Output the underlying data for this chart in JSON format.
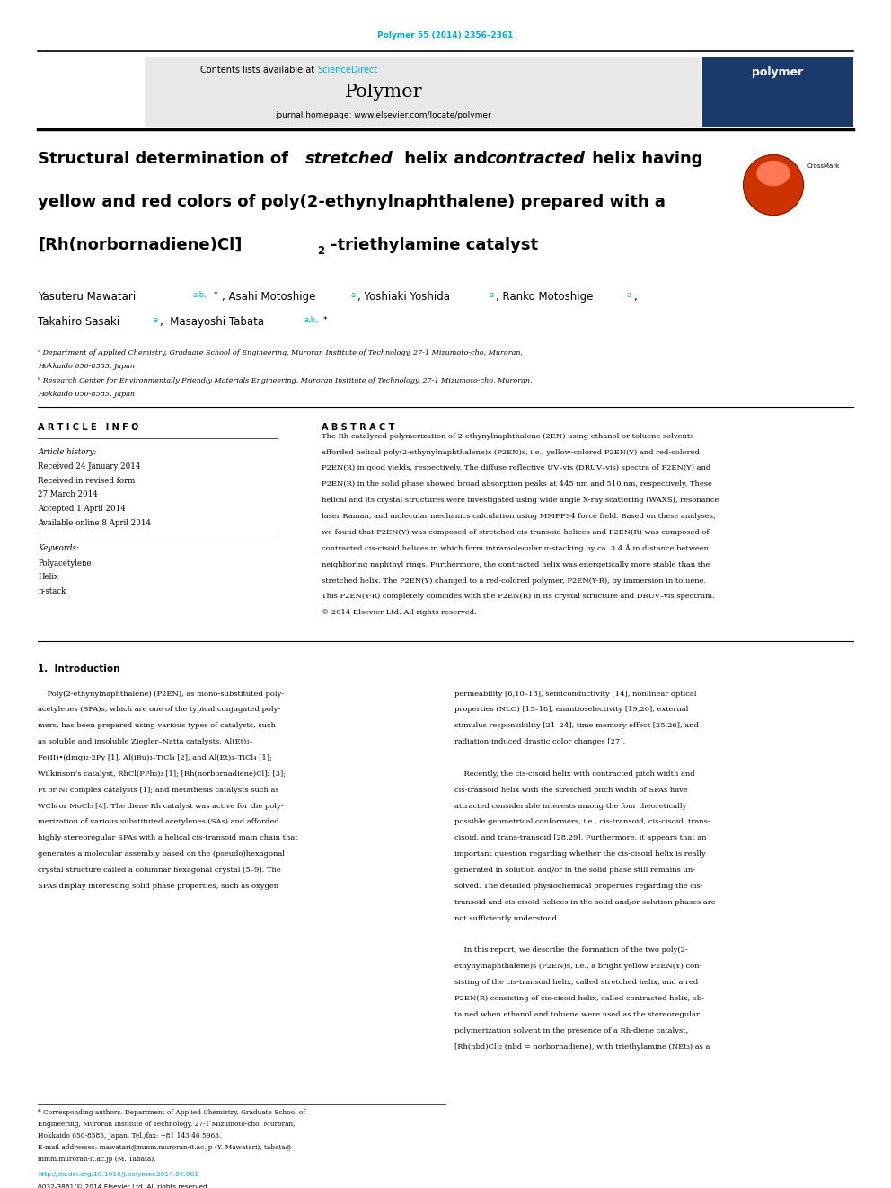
{
  "page_width": 9.92,
  "page_height": 13.23,
  "bg_color": "#ffffff",
  "journal_ref": "Polymer 55 (2014) 2356–2361",
  "journal_ref_color": "#00aacc",
  "header_bg": "#e8e8e8",
  "header_link_color": "#00aacc",
  "journal_name": "Polymer",
  "journal_homepage": "journal homepage: www.elsevier.com/locate/polymer",
  "article_info_title": "ARTICLE INFO",
  "abstract_title": "ABSTRACT",
  "article_history_label": "Article history:",
  "received1": "Received 24 January 2014",
  "received2": "Received in revised form",
  "received2b": "27 March 2014",
  "accepted": "Accepted 1 April 2014",
  "available": "Available online 8 April 2014",
  "keywords_label": "Keywords:",
  "keyword1": "Polyacetylene",
  "keyword2": "Helix",
  "keyword3": "π-stack",
  "copyright": "© 2014 Elsevier Ltd. All rights reserved.",
  "intro_title": "1.  Introduction",
  "doi_text": "http://dx.doi.org/10.1016/j.polymer.2014.04.001",
  "doi_color": "#00aacc",
  "issn_text": "0032-3861/© 2014 Elsevier Ltd. All rights reserved.",
  "link_color": "#00aacc",
  "abs_lines": [
    "The Rh-catalyzed polymerization of 2-ethynylnaphthalene (2EN) using ethanol or toluene solvents",
    "afforded helical poly(2-ethynylnaphthalene)s (P2EN)s, i.e., yellow-colored P2EN(Y) and red-colored",
    "P2EN(R) in good yields, respectively. The diffuse reflective UV–vis (DRUV–vis) spectra of P2EN(Y) and",
    "P2EN(R) in the solid phase showed broad absorption peaks at 445 nm and 510 nm, respectively. These",
    "helical and its crystal structures were investigated using wide angle X-ray scattering (WAXS), resonance",
    "laser Raman, and molecular mechanics calculation using MMFF94 force field. Based on these analyses,",
    "we found that P2EN(Y) was composed of stretched cis-transoid helices and P2EN(R) was composed of",
    "contracted cis-cisoid helices in which form intramolecular π-stacking by ca. 3.4 Å in distance between",
    "neighboring naphthyl rings. Furthermore, the contracted helix was energetically more stable than the",
    "stretched helix. The P2EN(Y) changed to a red-colored polymer, P2EN(Y-R), by immersion in toluene.",
    "This P2EN(Y-R) completely coincides with the P2EN(R) in its crystal structure and DRUV–vis spectrum.",
    "© 2014 Elsevier Ltd. All rights reserved."
  ],
  "intro_col1_lines": [
    "    Poly(2-ethynylnaphthalene) (P2EN), as mono-substituted poly-",
    "acetylenes (SPA)s, which are one of the typical conjugated poly-",
    "mers, has been prepared using various types of catalysts, such",
    "as soluble and insoluble Ziegler–Natta catalysts, Al(Et)₃–",
    "Fe(II)•(dmg)₂⋅2Py [1], Al(iBu)₃–TiCl₄ [2], and Al(Et)₃–TiCl₄ [1];",
    "Wilkinson’s catalyst, RhCl(PPh₃)₃ [1]; [Rh(norbornadiene)Cl]₂ [3];",
    "Pt or Ni complex catalysts [1]; and metathesis catalysts such as",
    "WCl₆ or MoCl₅ [4]. The diene Rh catalyst was active for the poly-",
    "merization of various substituted acetylenes (SAs) and afforded",
    "highly stereoregular SPAs with a helical cis-transoid main chain that",
    "generates a molecular assembly based on the (pseudo)hexagonal",
    "crystal structure called a columnar hexagonal crystal [5–9]. The",
    "SPAs display interesting solid phase properties, such as oxygen"
  ],
  "intro_col2_lines": [
    "permeability [6,10–13], semiconductivity [14], nonlinear optical",
    "properties (NLO) [15–18], enantioselectivity [19,20], external",
    "stimulus responsibility [21–24], time memory effect [25,26], and",
    "radiation-induced drastic color changes [27].",
    "",
    "    Recently, the cis-cisoid helix with contracted pitch width and",
    "cis-transoid helix with the stretched pitch width of SPAs have",
    "attracted considerable interests among the four theoretically",
    "possible geometrical conformers, i.e., cis-transoid, cis-cisoid, trans-",
    "cisoid, and trans-transoid [28,29]. Furthermore, it appears that an",
    "important question regarding whether the cis-cisoid helix is really",
    "generated in solution and/or in the solid phase still remains un-",
    "solved. The detailed physiochemical properties regarding the cis-",
    "transoid and cis-cisoid helices in the solid and/or solution phases are",
    "not sufficiently understood.",
    "",
    "    In this report, we describe the formation of the two poly(2-",
    "ethynylnaphthalene)s (P2EN)s, i.e., a bright yellow P2EN(Y) con-",
    "sisting of the cis-transoid helix, called stretched helix, and a red",
    "P2EN(R) consisting of cis-cisoid helix, called contracted helix, ob-",
    "tained when ethanol and toluene were used as the stereoregular",
    "polymerization solvent in the presence of a Rh-diene catalyst,",
    "[Rh(nbd)Cl]₂ (nbd = norbornadiene), with triethylamine (NEt₃) as a"
  ],
  "fn_lines": [
    "* Corresponding authors. Department of Applied Chemistry, Graduate School of",
    "Engineering, Muroran Institute of Technology, 27-1 Mizumoto-cho, Muroran,",
    "Hokkaido 050-8585, Japan. Tel./fax: +81 143 46 5963.",
    "E-mail addresses: mawatari@mmm.muroran-it.ac.jp (Y. Mawatari), tabata@",
    "mmm.muroran-it.ac.jp (M. Tabata)."
  ]
}
